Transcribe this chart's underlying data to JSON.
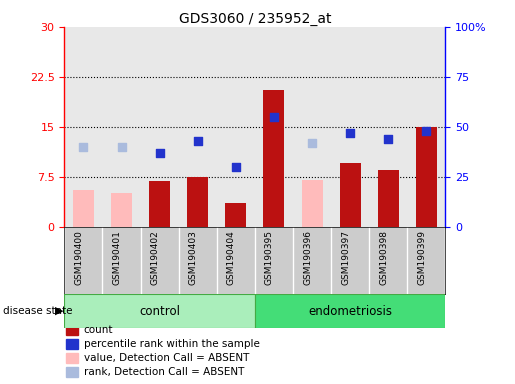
{
  "title": "GDS3060 / 235952_at",
  "samples": [
    "GSM190400",
    "GSM190401",
    "GSM190402",
    "GSM190403",
    "GSM190404",
    "GSM190395",
    "GSM190396",
    "GSM190397",
    "GSM190398",
    "GSM190399"
  ],
  "groups": [
    "control",
    "control",
    "control",
    "control",
    "control",
    "endometriosis",
    "endometriosis",
    "endometriosis",
    "endometriosis",
    "endometriosis"
  ],
  "count_values": [
    null,
    null,
    6.8,
    7.5,
    3.5,
    20.5,
    null,
    9.5,
    8.5,
    15.0
  ],
  "count_absent": [
    5.5,
    5.0,
    null,
    null,
    null,
    null,
    7.0,
    null,
    null,
    null
  ],
  "percentile_values_pct": [
    null,
    null,
    37.0,
    43.0,
    30.0,
    55.0,
    null,
    47.0,
    44.0,
    48.0
  ],
  "percentile_absent_pct": [
    40.0,
    40.0,
    null,
    null,
    null,
    null,
    42.0,
    null,
    null,
    null
  ],
  "left_ylim": [
    0,
    30
  ],
  "left_yticks": [
    0,
    7.5,
    15,
    22.5,
    30
  ],
  "left_yticklabels": [
    "0",
    "7.5",
    "15",
    "22.5",
    "30"
  ],
  "right_ylim": [
    0,
    100
  ],
  "right_yticks": [
    0,
    25,
    50,
    75,
    100
  ],
  "right_yticklabels": [
    "0",
    "25",
    "50",
    "75",
    "100%"
  ],
  "bar_color_present": "#bb1111",
  "bar_color_absent": "#ffbbbb",
  "dot_color_present": "#2233cc",
  "dot_color_absent": "#aabbdd",
  "plot_bg_color": "#e8e8e8",
  "xlabel_bg_color": "#cccccc",
  "control_color": "#aaeebb",
  "endo_color": "#44dd77",
  "hline_values": [
    7.5,
    15,
    22.5
  ],
  "bar_width": 0.55,
  "dot_size": 30,
  "legend_items": [
    {
      "label": "count",
      "color": "#bb1111"
    },
    {
      "label": "percentile rank within the sample",
      "color": "#2233cc"
    },
    {
      "label": "value, Detection Call = ABSENT",
      "color": "#ffbbbb"
    },
    {
      "label": "rank, Detection Call = ABSENT",
      "color": "#aabbdd"
    }
  ]
}
